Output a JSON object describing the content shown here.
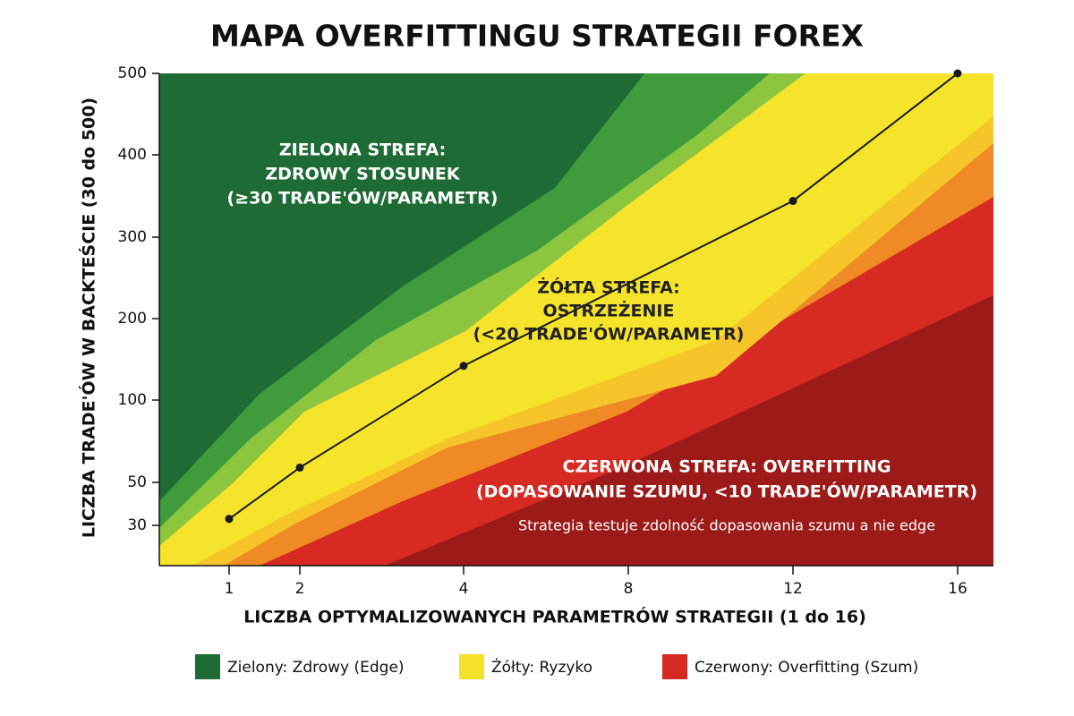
{
  "chart_data": {
    "type": "line",
    "title": "MAPA OVERFITTINGU STRATEGII FOREX",
    "x_label": "LICZBA OPTYMALIZOWANYCH PARAMETRÓW STRATEGII (1 do 16)",
    "y_label": "LICZBA TRADE'ÓW W BACKTEŚCIE (30 do 500)",
    "xlim": [
      0,
      17
    ],
    "xticks": [
      1,
      2,
      4,
      8,
      12,
      16
    ],
    "ylim": [
      10,
      500
    ],
    "yticks": [
      30,
      50,
      100,
      200,
      300,
      400,
      500
    ],
    "x": [
      1,
      2,
      4,
      12,
      16
    ],
    "series": [
      {
        "color": "#1a1a1a",
        "values": [
          33,
          59,
          142,
          344,
          500
        ]
      }
    ],
    "annotations": [
      {
        "lines": [
          "ZIELONA STREFA:",
          "ZDROWY STOSUNEK",
          "(≥30 TRADE'ÓW/PARAMETR)"
        ]
      },
      {
        "lines": [
          "ŻÓŁTA STREFA:",
          "OSTRZEŻENIE",
          "(<20 TRADE'ÓW/PARAMETR)"
        ]
      },
      {
        "lines": [
          "CZERWONA STREFA: OVERFITTING",
          "(DOPASOWANIE SZUMU, <10 TRADE'ÓW/PARAMETR)"
        ]
      },
      {
        "lines": [
          "Strategia testuje zdolność dopasowania szumu a nie edge"
        ]
      }
    ],
    "legend": [
      {
        "label": "Zielony: Zdrowy (Edge)",
        "color": "#1e6b35"
      },
      {
        "label": "Żółty: Ryzyko",
        "color": "#f4e12a"
      },
      {
        "label": "Czerwony: Overfitting (Szum)",
        "color": "#d42a22"
      }
    ]
  }
}
